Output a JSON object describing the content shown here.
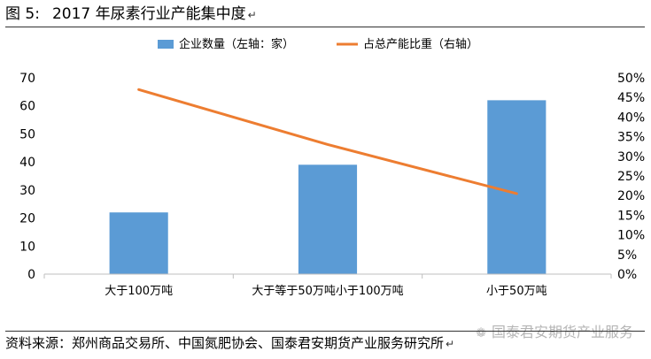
{
  "figure": {
    "number": "图 5:",
    "title": "2017 年尿素行业产能集中度",
    "source": "资料来源：郑州商品交易所、中国氮肥协会、国泰君安期货产业服务研究所",
    "watermark": "国泰君安期货产业服务"
  },
  "colors": {
    "bar": "#5b9bd5",
    "line": "#ed7d31",
    "axis": "#bfbfbf",
    "text": "#000000"
  },
  "chart_data": {
    "type": "bar+line",
    "categories": [
      "大于100万吨",
      "大于等于50万吨小于100万吨",
      "小于50万吨"
    ],
    "series": [
      {
        "name": "企业数量（左轴：家）",
        "type": "bar",
        "axis": "left",
        "values": [
          22,
          39,
          62
        ]
      },
      {
        "name": "占总产能比重（右轴）",
        "type": "line",
        "axis": "right",
        "values": [
          47,
          33,
          20.5
        ]
      }
    ],
    "y_left": {
      "min": 0,
      "max": 70,
      "step": 10,
      "ticks": [
        "0",
        "10",
        "20",
        "30",
        "40",
        "50",
        "60",
        "70"
      ]
    },
    "y_right": {
      "min": 0,
      "max": 50,
      "step": 5,
      "ticks": [
        "0%",
        "5%",
        "10%",
        "15%",
        "20%",
        "25%",
        "30%",
        "35%",
        "40%",
        "45%",
        "50%"
      ]
    },
    "legend_position": "top",
    "grid": false
  }
}
